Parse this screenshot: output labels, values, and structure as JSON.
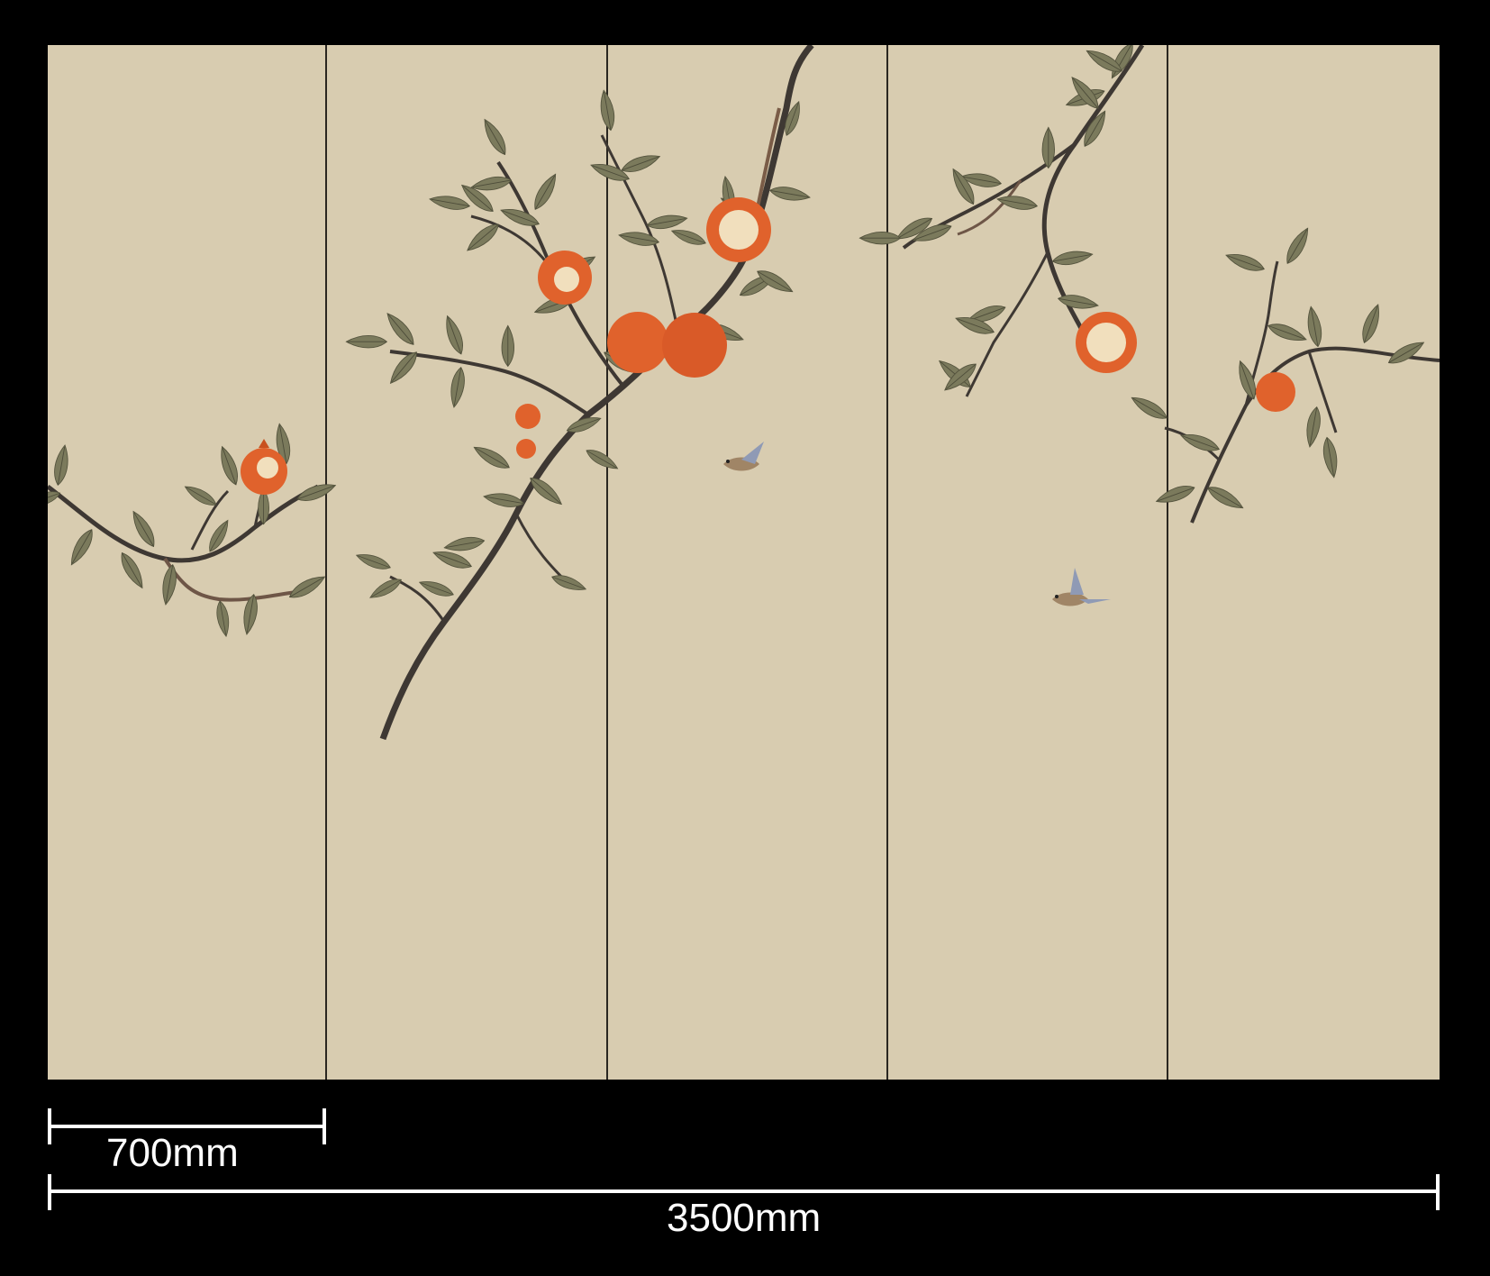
{
  "mural": {
    "panel_count": 5,
    "background_color": "#d8ccb0",
    "panel_divider_color": "#2a2620",
    "leaf_color": "#7b7a5c",
    "branch_color": "#3e3833",
    "fruit_color": "#e0622c",
    "seed_color": "#f1dfbd",
    "motifs": [
      "pomegranate-branch",
      "pomegranate-fruit",
      "sparrow"
    ]
  },
  "dimensions": {
    "panel_width_label": "700mm",
    "total_width_label": "3500mm",
    "line_color": "#ffffff"
  }
}
